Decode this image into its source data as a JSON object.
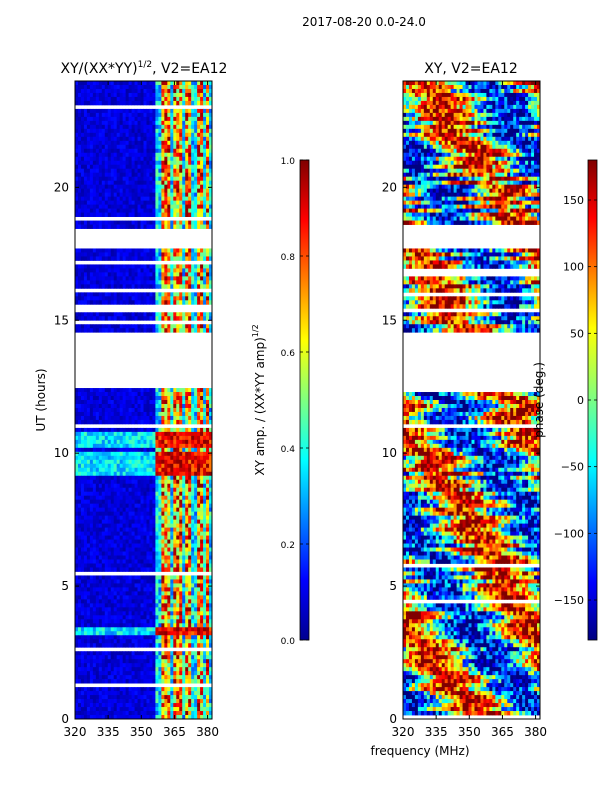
{
  "suptitle": "2017-08-20 0.0-24.0",
  "shared_xlabel": "frequency (MHz)",
  "colors": {
    "frame": "#000000",
    "gap": "#ffffff",
    "jet_low": "#00008f",
    "jet_high": "#800000"
  },
  "chart_data": [
    {
      "type": "heatmap",
      "title_main": "XY/(XX*YY)",
      "title_exp": "1/2",
      "title_tail": ", V2=EA12",
      "ylabel": "UT (hours)",
      "xlim": [
        320,
        382
      ],
      "ylim": [
        0,
        24
      ],
      "xticks": [
        320,
        335,
        350,
        365,
        380
      ],
      "yticks": [
        0,
        5,
        10,
        15,
        20
      ],
      "colorbar": {
        "label_main": "XY amp. / (XX*YY amp)",
        "label_exp": "1/2",
        "range": [
          0.0,
          1.0
        ],
        "ticks": [
          0.0,
          0.2,
          0.4,
          0.6,
          0.8,
          1.0
        ],
        "tick_labels": [
          "0.0",
          "0.2",
          "0.4",
          "0.6",
          "0.8",
          "1.0"
        ]
      },
      "bright_channel_bands_mhz": [
        [
          359,
          363
        ],
        [
          365,
          368
        ],
        [
          370,
          373
        ],
        [
          375,
          378
        ],
        [
          379,
          381
        ]
      ],
      "bright_time_bands_hours": [
        [
          3.1,
          3.5
        ],
        [
          9.2,
          10.0
        ],
        [
          10.2,
          10.8
        ]
      ],
      "missing_data_hours": [
        [
          12.5,
          14.6
        ],
        [
          17.7,
          18.4
        ],
        [
          15.3,
          15.4
        ],
        [
          11.0,
          11.1
        ]
      ]
    },
    {
      "type": "heatmap",
      "title": "XY, V2=EA12",
      "xlim": [
        320,
        382
      ],
      "ylim": [
        0,
        24
      ],
      "xticks": [
        320,
        335,
        350,
        365,
        380
      ],
      "yticks": [
        0,
        5,
        10,
        15,
        20
      ],
      "colorbar": {
        "label": "phase (deg.)",
        "range": [
          -180,
          180
        ],
        "ticks": [
          -150,
          -100,
          -50,
          0,
          50,
          100,
          150
        ],
        "tick_labels": [
          "−150",
          "−100",
          "−50",
          "0",
          "50",
          "100",
          "150"
        ]
      },
      "missing_data_hours": [
        [
          12.5,
          14.6
        ],
        [
          17.7,
          18.4
        ],
        [
          15.3,
          15.4
        ],
        [
          11.0,
          11.1
        ]
      ]
    }
  ]
}
